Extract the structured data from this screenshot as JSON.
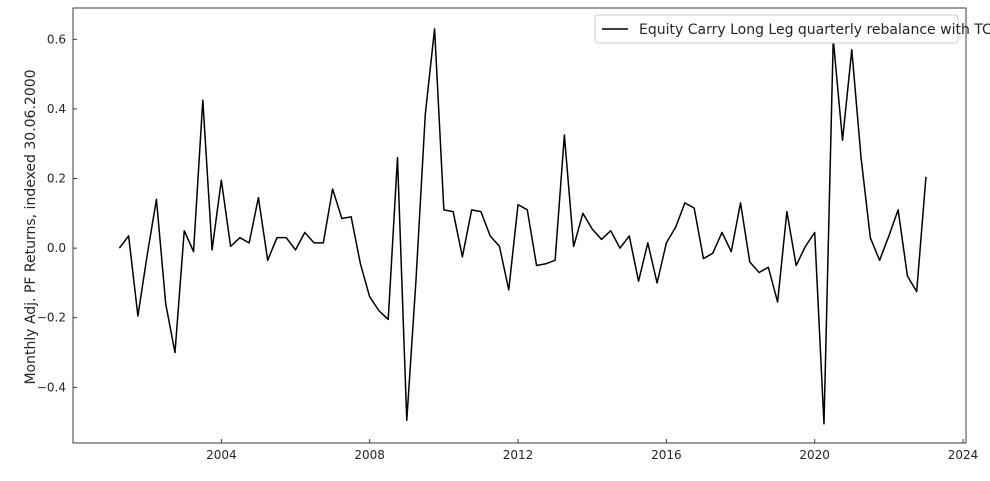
{
  "chart_data": {
    "type": "line",
    "title": "",
    "xlabel": "",
    "ylabel": "Monthly Adj. PF Returns, indexed 30.06.2000",
    "xlim": [
      2000.0,
      2024.08
    ],
    "ylim": [
      -0.56,
      0.69
    ],
    "x_ticks": [
      2004,
      2008,
      2012,
      2016,
      2020,
      2024
    ],
    "x_tick_labels": [
      "2004",
      "2008",
      "2012",
      "2016",
      "2020",
      "2024"
    ],
    "y_ticks": [
      -0.4,
      -0.2,
      0.0,
      0.2,
      0.4,
      0.6
    ],
    "y_tick_labels": [
      "−0.4",
      "−0.2",
      "0.0",
      "0.2",
      "0.4",
      "0.6"
    ],
    "grid": false,
    "legend_position": "top-right",
    "series": [
      {
        "name": "Equity Carry Long Leg quarterly rebalance with TC",
        "color": "#000000",
        "x": [
          2001.25,
          2001.5,
          2001.75,
          2002.0,
          2002.25,
          2002.5,
          2002.75,
          2003.0,
          2003.25,
          2003.5,
          2003.75,
          2004.0,
          2004.25,
          2004.5,
          2004.75,
          2005.0,
          2005.25,
          2005.5,
          2005.75,
          2006.0,
          2006.25,
          2006.5,
          2006.75,
          2007.0,
          2007.25,
          2007.5,
          2007.75,
          2008.0,
          2008.25,
          2008.5,
          2008.75,
          2009.0,
          2009.25,
          2009.5,
          2009.75,
          2010.0,
          2010.25,
          2010.5,
          2010.75,
          2011.0,
          2011.25,
          2011.5,
          2011.75,
          2012.0,
          2012.25,
          2012.5,
          2012.75,
          2013.0,
          2013.25,
          2013.5,
          2013.75,
          2014.0,
          2014.25,
          2014.5,
          2014.75,
          2015.0,
          2015.25,
          2015.5,
          2015.75,
          2016.0,
          2016.25,
          2016.5,
          2016.75,
          2017.0,
          2017.25,
          2017.5,
          2017.75,
          2018.0,
          2018.25,
          2018.5,
          2018.75,
          2019.0,
          2019.25,
          2019.5,
          2019.75,
          2020.0,
          2020.25,
          2020.5,
          2020.75,
          2021.0,
          2021.25,
          2021.5,
          2021.75,
          2022.0,
          2022.25,
          2022.5,
          2022.75,
          2023.0
        ],
        "y": [
          0.0,
          0.035,
          -0.195,
          -0.02,
          0.14,
          -0.16,
          -0.3,
          0.05,
          -0.01,
          0.425,
          -0.005,
          0.195,
          0.005,
          0.03,
          0.015,
          0.145,
          -0.035,
          0.03,
          0.03,
          -0.005,
          0.045,
          0.015,
          0.015,
          0.17,
          0.085,
          0.09,
          -0.045,
          -0.14,
          -0.18,
          -0.205,
          0.26,
          -0.495,
          -0.09,
          0.385,
          0.63,
          0.11,
          0.105,
          -0.025,
          0.11,
          0.105,
          0.035,
          0.005,
          -0.12,
          0.125,
          0.11,
          -0.05,
          -0.045,
          -0.035,
          0.325,
          0.005,
          0.1,
          0.055,
          0.025,
          0.05,
          0.0,
          0.035,
          -0.095,
          0.015,
          -0.1,
          0.015,
          0.06,
          0.13,
          0.115,
          -0.03,
          -0.015,
          0.045,
          -0.01,
          0.13,
          -0.04,
          -0.07,
          -0.055,
          -0.155,
          0.105,
          -0.05,
          0.005,
          0.045,
          -0.505,
          0.6,
          0.31,
          0.57,
          0.26,
          0.03,
          -0.035,
          0.035,
          0.11,
          -0.08,
          -0.125,
          0.205
        ]
      }
    ]
  }
}
